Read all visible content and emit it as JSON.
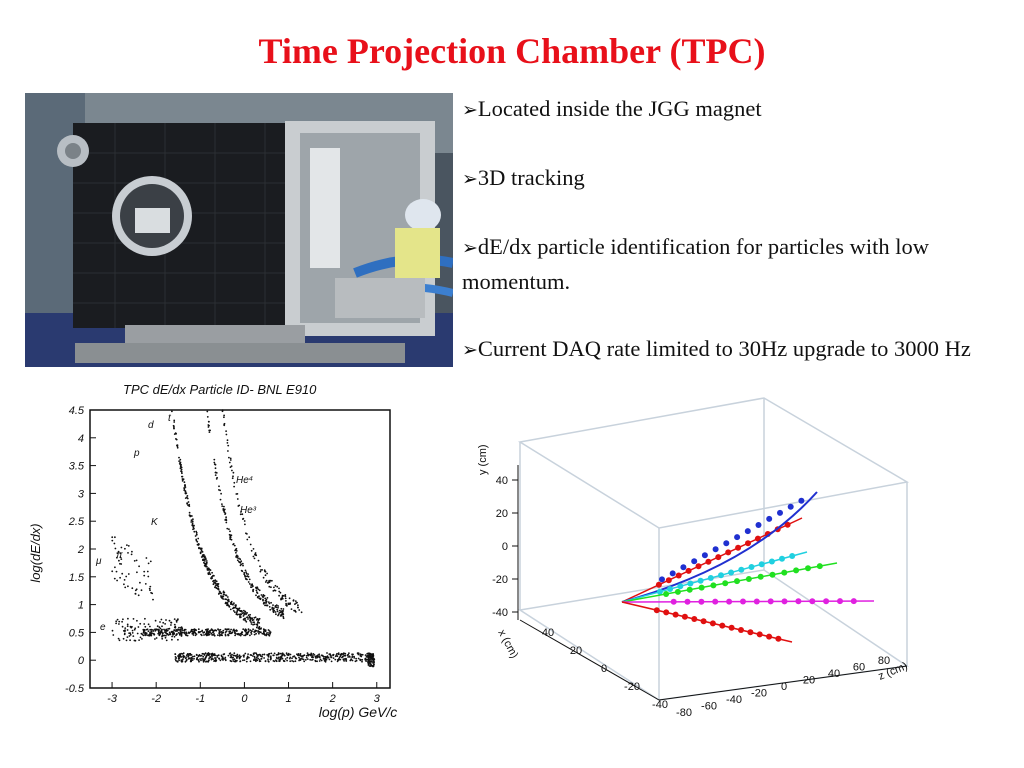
{
  "slide": {
    "title": "Time Projection Chamber (TPC)",
    "bullets": [
      "Located inside the JGG magnet",
      "3D tracking",
      "dE/dx particle identification for particles with low momentum.",
      "Current DAQ rate limited to 30Hz upgrade to 3000 Hz"
    ],
    "bullet_glyph": "➢"
  },
  "dedx_plot": {
    "title": "TPC dE/dx Particle ID- BNL E910",
    "xlabel": "log(p) GeV/c",
    "ylabel": "log(dE/dx)",
    "x_ticks": [
      "-3",
      "-2",
      "-1",
      "0",
      "1",
      "2",
      "3"
    ],
    "y_ticks": [
      "4.5",
      "4",
      "3.5",
      "3",
      "2.5",
      "2",
      "1.5",
      "1",
      "0.5",
      "0",
      "-0.5"
    ],
    "particle_labels": [
      "t",
      "d",
      "p",
      "He⁴",
      "He³",
      "K",
      "μ",
      "π",
      "e"
    ]
  },
  "tracks_plot": {
    "y_axis_label": "y (cm)",
    "x_axis_label": "x (cm)",
    "z_axis_label": "z (cm)",
    "y_ticks": [
      "40",
      "20",
      "0",
      "-20",
      "-40"
    ],
    "x_ticks": [
      "40",
      "20",
      "0",
      "-20",
      "-40"
    ],
    "z_ticks": [
      "-80",
      "-60",
      "-40",
      "-20",
      "0",
      "20",
      "40",
      "60",
      "80"
    ],
    "track_colors": [
      "#e01010",
      "#2030d0",
      "#20d0e0",
      "#20e020",
      "#e020e0",
      "#e01010"
    ]
  }
}
